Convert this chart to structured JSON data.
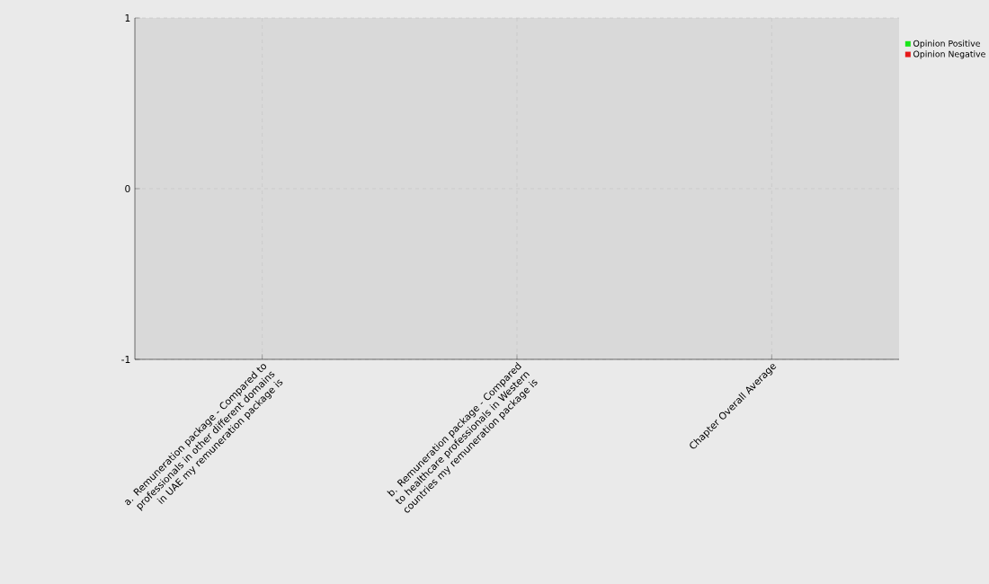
{
  "chart_data": {
    "type": "bar",
    "categories": [
      "a. Remuneration package - Compared to professionals in other different domains in UAE my remuneration package is",
      "b. Remuneration package - Compared to healthcare professionals in Western countries my remuneration package is",
      "Chapter Overall Average"
    ],
    "series": [
      {
        "name": "Opinion Positive",
        "color": "#19e619",
        "values": [
          0,
          0,
          0
        ]
      },
      {
        "name": "Opinion Negative",
        "color": "#e61919",
        "values": [
          0,
          0,
          0
        ]
      }
    ],
    "ylim": [
      -1,
      1
    ],
    "yticks": [
      -1,
      0,
      1
    ],
    "grid": true,
    "legend": "top right"
  }
}
